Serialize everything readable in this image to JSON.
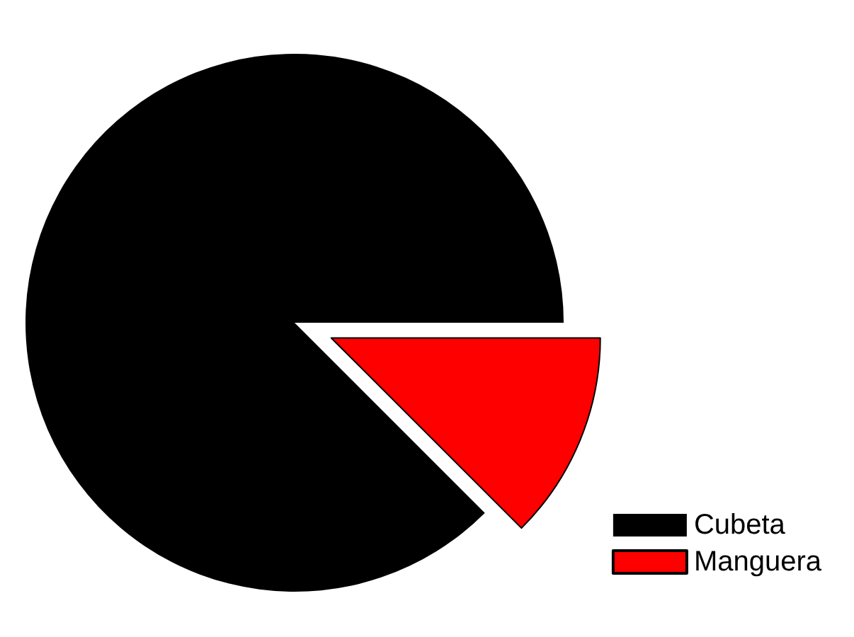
{
  "chart_data": {
    "type": "pie",
    "categories": [
      "Cubeta",
      "Manguera"
    ],
    "values": [
      87.5,
      12.5
    ],
    "colors": [
      "#000000",
      "#ff0000"
    ],
    "legend": "bottom right"
  }
}
